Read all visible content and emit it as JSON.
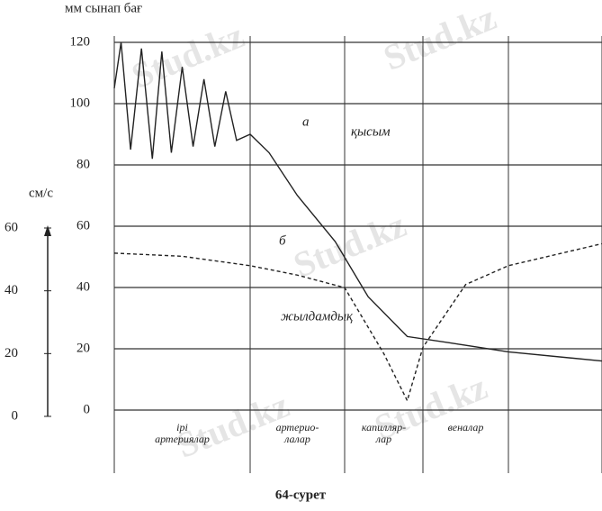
{
  "chart_data": {
    "type": "line",
    "ylabel": "мм сынап бағ",
    "y2label": "см/с",
    "caption": "64-сурет",
    "watermark": "Stud.kz",
    "categories": [
      "ірі\nартериялар",
      "артерио-\nлалар",
      "капилляр-\nлар",
      "веналар"
    ],
    "xlim": [
      0,
      5
    ],
    "ylim": [
      0,
      120
    ],
    "yticks": [
      0,
      20,
      40,
      60,
      80,
      100,
      120
    ],
    "y2lim": [
      0,
      60
    ],
    "y2ticks": [
      0,
      20,
      40,
      60
    ],
    "grid": true,
    "annotations": [
      "а",
      "б"
    ],
    "series": [
      {
        "name": "қысым",
        "color": "#222",
        "axis": "y",
        "x": [
          0,
          0.05,
          0.12,
          0.2,
          0.28,
          0.35,
          0.42,
          0.5,
          0.58,
          0.66,
          0.74,
          0.82,
          0.9,
          1.0,
          1.2,
          1.5,
          1.9,
          2.3,
          2.8,
          3.3,
          4.0,
          5.0
        ],
        "values": [
          105,
          120,
          85,
          118,
          82,
          117,
          84,
          112,
          86,
          108,
          86,
          104,
          88,
          90,
          84,
          70,
          55,
          37,
          24,
          22,
          19,
          16
        ]
      },
      {
        "name": "жылдамдық",
        "color": "#222",
        "axis": "y2",
        "x": [
          0,
          0.5,
          1.0,
          1.5,
          2.0,
          2.5,
          2.8,
          3.0,
          3.5,
          4.0,
          5.0
        ],
        "values": [
          52,
          51,
          48,
          45,
          41,
          20,
          5,
          22,
          42,
          48,
          55
        ]
      }
    ]
  }
}
